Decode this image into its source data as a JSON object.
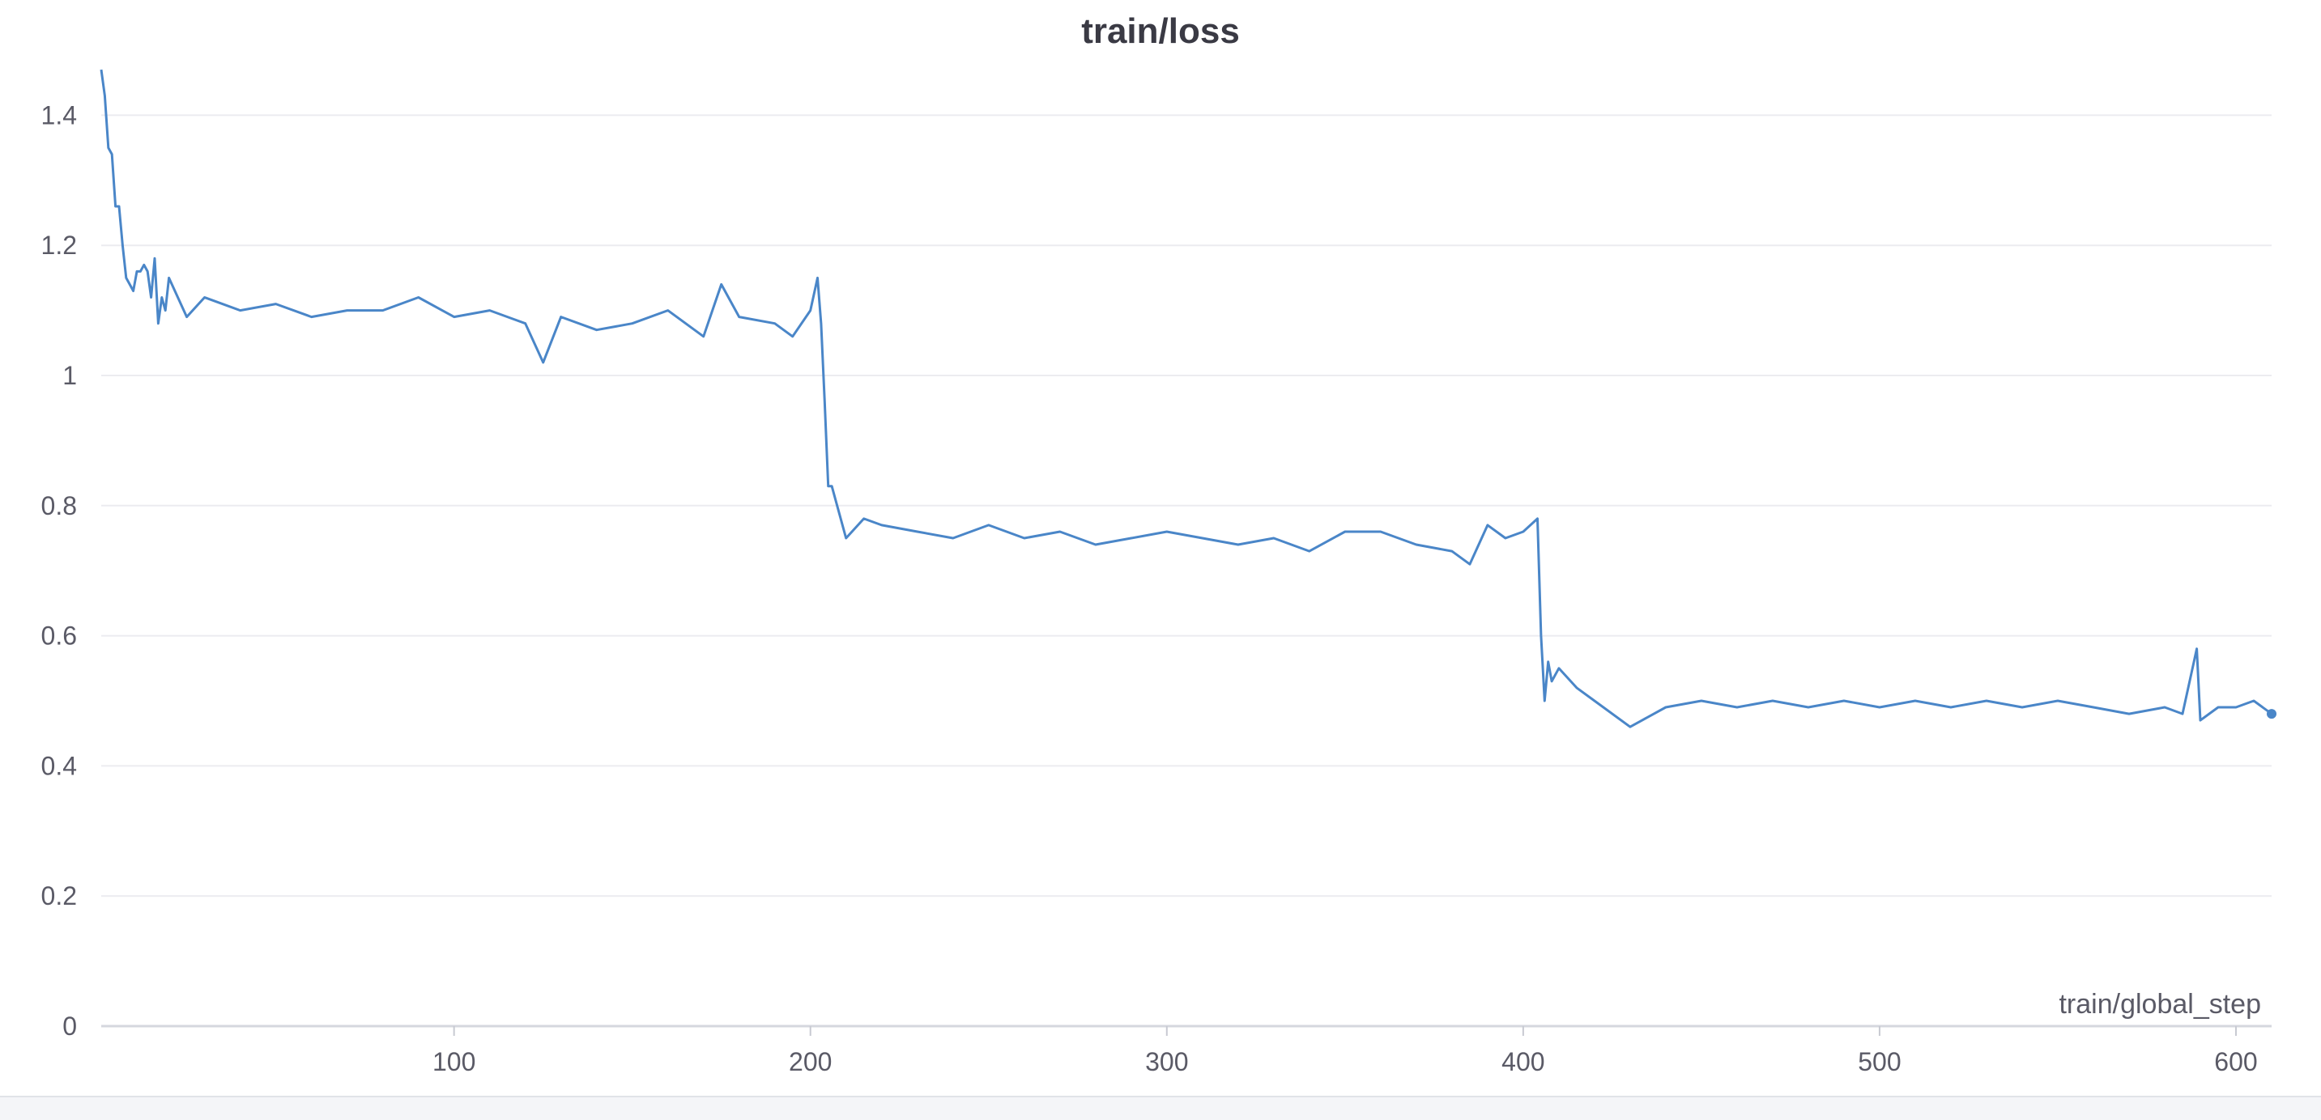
{
  "chart_data": {
    "type": "line",
    "title": "train/loss",
    "xlabel": "train/global_step",
    "ylabel": "",
    "xlim": [
      1,
      610
    ],
    "ylim": [
      0,
      1.5
    ],
    "x_ticks": [
      100,
      200,
      300,
      400,
      500,
      600
    ],
    "y_ticks": [
      0,
      0.2,
      0.4,
      0.6,
      0.8,
      1,
      1.2,
      1.4
    ],
    "x_tick_labels": [
      "100",
      "200",
      "300",
      "400",
      "500",
      "600"
    ],
    "y_tick_labels": [
      "0",
      "0.2",
      "0.4",
      "0.6",
      "0.8",
      "1",
      "1.2",
      "1.4"
    ],
    "grid": true,
    "legend": "none",
    "series": [
      {
        "color": "#4a86c8",
        "x": [
          1,
          2,
          3,
          4,
          5,
          6,
          7,
          8,
          9,
          10,
          11,
          12,
          13,
          14,
          15,
          16,
          17,
          18,
          19,
          20,
          25,
          30,
          40,
          50,
          60,
          70,
          80,
          90,
          100,
          110,
          120,
          125,
          130,
          140,
          150,
          160,
          170,
          175,
          180,
          190,
          195,
          200,
          202,
          203,
          204,
          205,
          206,
          210,
          215,
          220,
          230,
          240,
          250,
          260,
          270,
          280,
          290,
          300,
          310,
          320,
          330,
          340,
          350,
          360,
          370,
          380,
          385,
          390,
          395,
          400,
          404,
          405,
          406,
          407,
          408,
          410,
          415,
          420,
          430,
          440,
          450,
          460,
          470,
          480,
          490,
          500,
          510,
          520,
          530,
          540,
          550,
          560,
          570,
          580,
          585,
          589,
          590,
          595,
          600,
          605,
          610
        ],
        "y": [
          1.47,
          1.43,
          1.35,
          1.34,
          1.26,
          1.26,
          1.2,
          1.15,
          1.14,
          1.13,
          1.16,
          1.16,
          1.17,
          1.16,
          1.12,
          1.18,
          1.08,
          1.12,
          1.1,
          1.15,
          1.09,
          1.12,
          1.1,
          1.11,
          1.09,
          1.1,
          1.1,
          1.12,
          1.09,
          1.1,
          1.08,
          1.02,
          1.09,
          1.07,
          1.08,
          1.1,
          1.06,
          1.14,
          1.09,
          1.08,
          1.06,
          1.1,
          1.15,
          1.08,
          0.96,
          0.83,
          0.83,
          0.75,
          0.78,
          0.77,
          0.76,
          0.75,
          0.77,
          0.75,
          0.76,
          0.74,
          0.75,
          0.76,
          0.75,
          0.74,
          0.75,
          0.73,
          0.76,
          0.76,
          0.74,
          0.73,
          0.71,
          0.77,
          0.75,
          0.76,
          0.78,
          0.6,
          0.5,
          0.56,
          0.53,
          0.55,
          0.52,
          0.5,
          0.46,
          0.49,
          0.5,
          0.49,
          0.5,
          0.49,
          0.5,
          0.49,
          0.5,
          0.49,
          0.5,
          0.49,
          0.5,
          0.49,
          0.48,
          0.49,
          0.48,
          0.58,
          0.47,
          0.49,
          0.49,
          0.5,
          0.48
        ]
      }
    ]
  }
}
